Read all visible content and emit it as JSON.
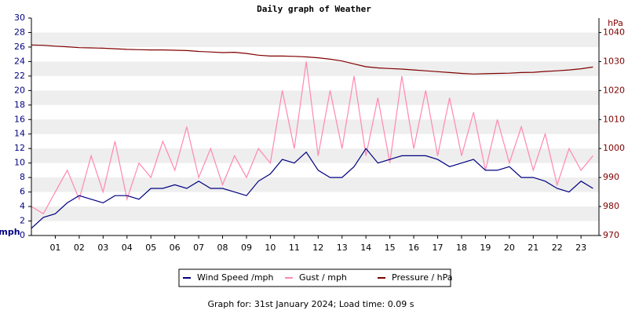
{
  "chart_data": {
    "type": "line",
    "title": "Daily graph of Weather",
    "y_label": "mph",
    "y2_label": "hPa",
    "footer": "Graph for: 31st January 2024; Load time: 0.09 s",
    "x": [
      0,
      0.5,
      1,
      1.5,
      2,
      2.5,
      3,
      3.5,
      4,
      4.5,
      5,
      5.5,
      6,
      6.5,
      7,
      7.5,
      8,
      8.5,
      9,
      9.5,
      10,
      10.5,
      11,
      11.5,
      12,
      12.5,
      13,
      13.5,
      14,
      14.5,
      15,
      15.5,
      16,
      16.5,
      17,
      17.5,
      18,
      18.5,
      19,
      19.5,
      20,
      20.5,
      21,
      21.5,
      22,
      22.5,
      23,
      23.5
    ],
    "xlim": [
      0,
      23.75
    ],
    "xticks": [
      {
        "value": 1,
        "label": "01"
      },
      {
        "value": 2,
        "label": "02"
      },
      {
        "value": 3,
        "label": "03"
      },
      {
        "value": 4,
        "label": "04"
      },
      {
        "value": 5,
        "label": "05"
      },
      {
        "value": 6,
        "label": "06"
      },
      {
        "value": 7,
        "label": "07"
      },
      {
        "value": 8,
        "label": "08"
      },
      {
        "value": 9,
        "label": "09"
      },
      {
        "value": 10,
        "label": "10"
      },
      {
        "value": 11,
        "label": "11"
      },
      {
        "value": 12,
        "label": "12"
      },
      {
        "value": 13,
        "label": "13"
      },
      {
        "value": 14,
        "label": "14"
      },
      {
        "value": 15,
        "label": "15"
      },
      {
        "value": 16,
        "label": "16"
      },
      {
        "value": 17,
        "label": "17"
      },
      {
        "value": 18,
        "label": "18"
      },
      {
        "value": 19,
        "label": "19"
      },
      {
        "value": 20,
        "label": "20"
      },
      {
        "value": 21,
        "label": "21"
      },
      {
        "value": 22,
        "label": "22"
      },
      {
        "value": 23,
        "label": "23"
      }
    ],
    "ylim": [
      0,
      30
    ],
    "yticks": [
      0,
      2,
      4,
      6,
      8,
      10,
      12,
      14,
      16,
      18,
      20,
      22,
      24,
      26,
      28,
      30
    ],
    "y2lim": [
      970,
      1045
    ],
    "y2ticks": [
      970,
      980,
      990,
      1000,
      1010,
      1020,
      1030,
      1040
    ],
    "grid": true,
    "legend": "bottom",
    "series": [
      {
        "name": "Gust / mph",
        "color": "#ff88b0",
        "values": [
          4,
          3,
          6,
          9,
          5,
          11,
          6,
          13,
          5,
          10,
          8,
          13,
          9,
          15,
          8,
          12,
          7,
          11,
          8,
          12,
          10,
          20,
          12,
          24,
          11,
          20,
          12,
          22,
          11,
          19,
          10,
          22,
          12,
          20,
          11,
          19,
          11,
          17,
          9,
          16,
          10,
          15,
          9,
          14,
          7,
          12,
          9,
          11
        ]
      },
      {
        "name": "Pressure / hPa",
        "color": "#800000",
        "axis": "y2",
        "values": [
          1035.7,
          1035.6,
          1035.3,
          1035.1,
          1034.8,
          1034.7,
          1034.6,
          1034.4,
          1034.2,
          1034.1,
          1034.0,
          1034.0,
          1033.9,
          1033.8,
          1033.5,
          1033.3,
          1033.1,
          1033.2,
          1032.8,
          1032.2,
          1031.9,
          1031.9,
          1031.8,
          1031.6,
          1031.3,
          1030.8,
          1030.2,
          1029.2,
          1028.2,
          1027.8,
          1027.6,
          1027.4,
          1027.1,
          1026.8,
          1026.5,
          1026.2,
          1025.9,
          1025.7,
          1025.8,
          1025.9,
          1026.0,
          1026.2,
          1026.3,
          1026.6,
          1026.8,
          1027.1,
          1027.5,
          1028.1
        ]
      },
      {
        "name": "Wind Speed /mph",
        "color": "#000080",
        "values": [
          1,
          2.5,
          3,
          4.5,
          5.5,
          5,
          4.5,
          5.5,
          5.5,
          5,
          6.5,
          6.5,
          7,
          6.5,
          7.5,
          6.5,
          6.5,
          6,
          5.5,
          7.5,
          8.5,
          10.5,
          10,
          11.5,
          9,
          8,
          8,
          9.5,
          12,
          10,
          10.5,
          11,
          11,
          11,
          10.5,
          9.5,
          10,
          10.5,
          9,
          9,
          9.5,
          8,
          8,
          7.5,
          6.5,
          6,
          7.5,
          6.5
        ]
      }
    ]
  }
}
